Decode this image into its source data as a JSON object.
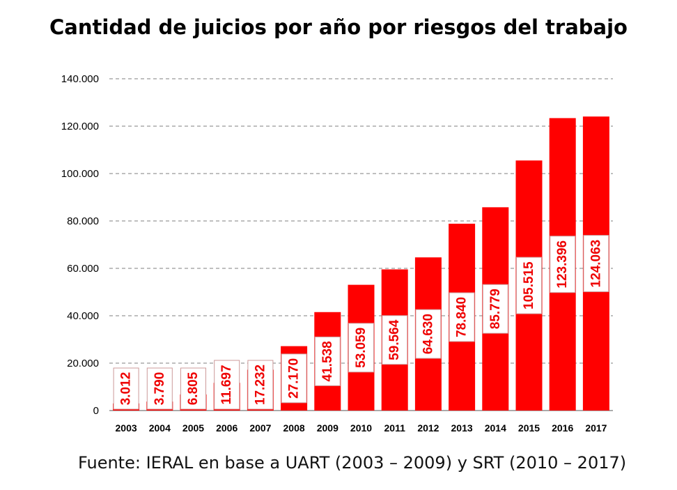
{
  "chart_data": {
    "type": "bar",
    "title": "Cantidad de juicios por año por riesgos del trabajo",
    "source": "Fuente: IERAL en base a UART (2003 – 2009) y SRT (2010 – 2017)",
    "categories": [
      "2003",
      "2004",
      "2005",
      "2006",
      "2007",
      "2008",
      "2009",
      "2010",
      "2011",
      "2012",
      "2013",
      "2014",
      "2015",
      "2016",
      "2017"
    ],
    "values": [
      3012,
      3790,
      6805,
      11697,
      17232,
      27170,
      41538,
      53059,
      59564,
      64630,
      78840,
      85779,
      105515,
      123396,
      124063
    ],
    "data_labels": [
      "3.012",
      "3.790",
      "6.805",
      "11.697",
      "17.232",
      "27.170",
      "41.538",
      "53.059",
      "59.564",
      "64.630",
      "78.840",
      "85.779",
      "105.515",
      "123.396",
      "124.063"
    ],
    "yticks": [
      0,
      20000,
      40000,
      60000,
      80000,
      100000,
      120000,
      140000
    ],
    "ytick_labels": [
      "0",
      "20.000",
      "40.000",
      "60.000",
      "80.000",
      "100.000",
      "120.000",
      "140.000"
    ],
    "ylim": [
      0,
      140000
    ],
    "grid": "horizontal dashed",
    "bar_color": "#ff0000",
    "xlabel": "",
    "ylabel": ""
  }
}
